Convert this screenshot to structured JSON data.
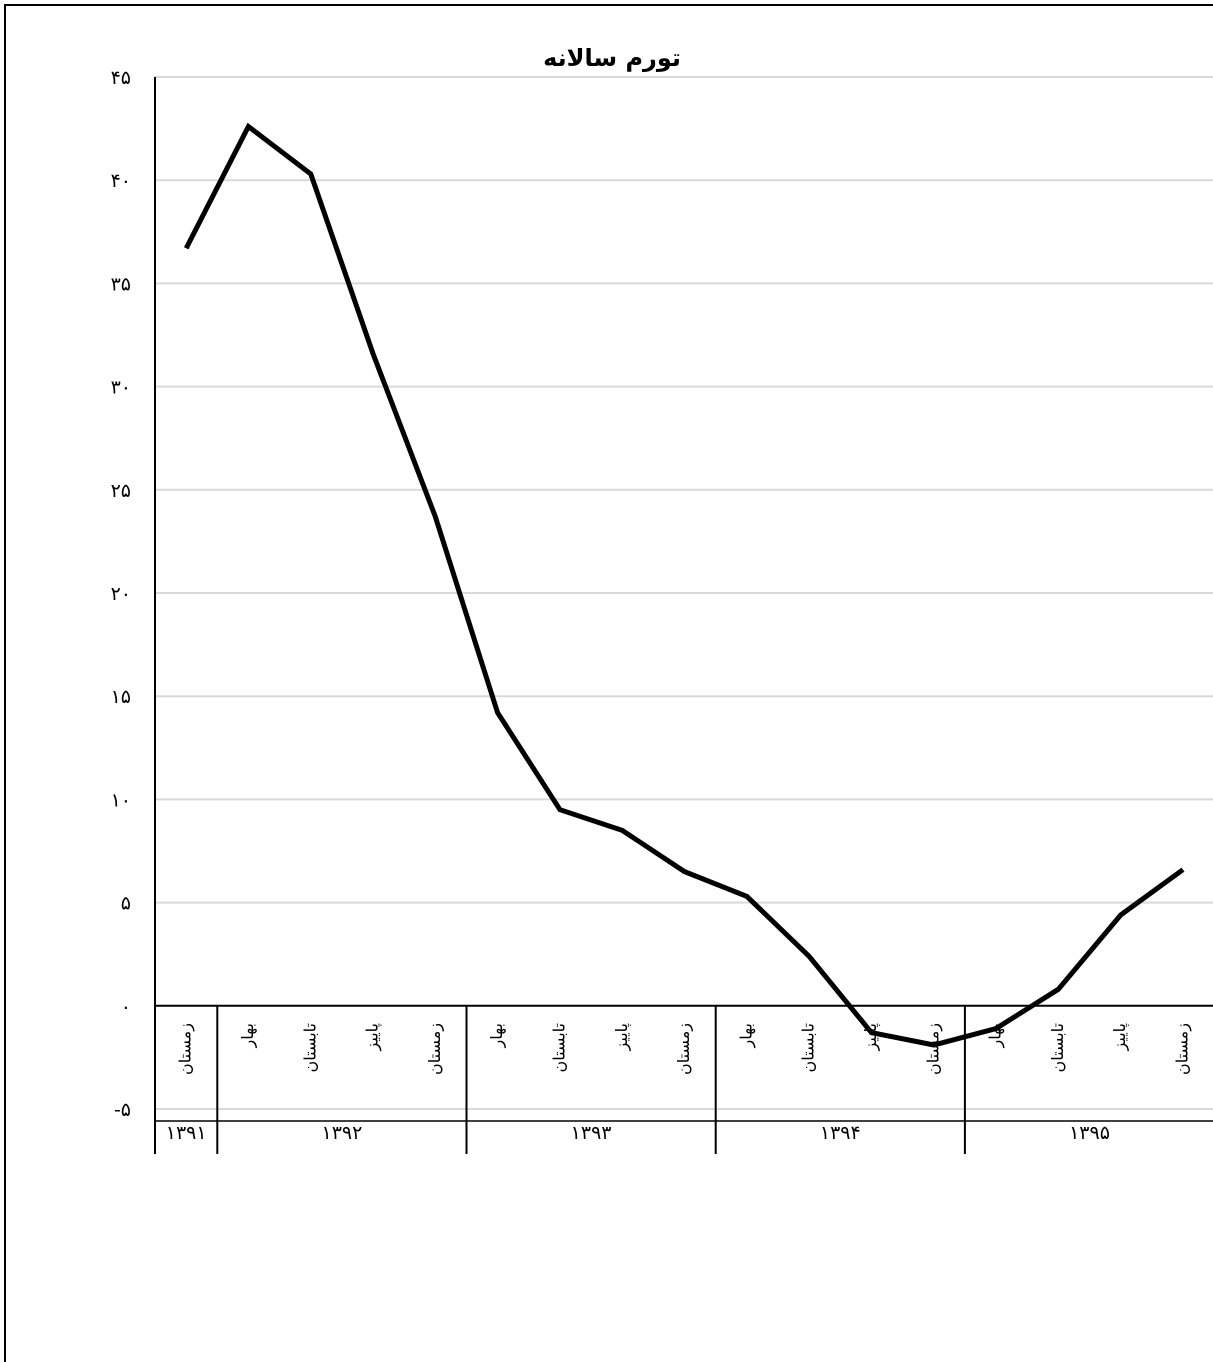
{
  "chart_data": {
    "type": "line",
    "title": "تورم سالانه",
    "xlabel": "",
    "ylabel": "",
    "ylim": [
      -5,
      45
    ],
    "yticks": [
      {
        "value": 45,
        "label": "۴۵"
      },
      {
        "value": 40,
        "label": "۴۰"
      },
      {
        "value": 35,
        "label": "۳۵"
      },
      {
        "value": 30,
        "label": "۳۰"
      },
      {
        "value": 25,
        "label": "۲۵"
      },
      {
        "value": 20,
        "label": "۲۰"
      },
      {
        "value": 15,
        "label": "۱۵"
      },
      {
        "value": 10,
        "label": "۱۰"
      },
      {
        "value": 5,
        "label": "۵"
      },
      {
        "value": 0,
        "label": "۰"
      },
      {
        "value": -5,
        "label": "-۵"
      }
    ],
    "grid": true,
    "categories": [
      "زمستان",
      "بهار",
      "تابستان",
      "پاییز",
      "زمستان",
      "بهار",
      "تابستان",
      "پاییز",
      "زمستان",
      "بهار",
      "تابستان",
      "پاییز",
      "زمستان",
      "بهار",
      "تابستان",
      "پاییز",
      "زمستان"
    ],
    "groups": [
      {
        "label": "۱۳۹۱",
        "count": 1
      },
      {
        "label": "۱۳۹۲",
        "count": 4
      },
      {
        "label": "۱۳۹۳",
        "count": 4
      },
      {
        "label": "۱۳۹۴",
        "count": 4
      },
      {
        "label": "۱۳۹۵",
        "count": 4
      }
    ],
    "series": [
      {
        "values": [
          36.7,
          42.6,
          40.3,
          31.6,
          23.7,
          14.2,
          9.5,
          8.5,
          6.5,
          5.3,
          2.4,
          -1.3,
          -1.9,
          -1.1,
          0.8,
          4.4,
          6.6
        ],
        "color": "#000000"
      }
    ]
  }
}
